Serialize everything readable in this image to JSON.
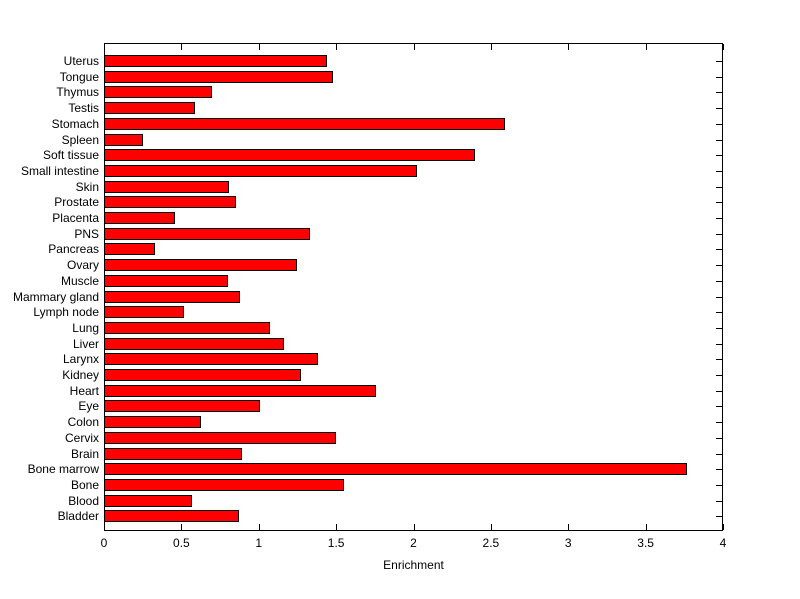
{
  "chart_data": {
    "type": "bar",
    "orientation": "horizontal",
    "xlabel": "Enrichment",
    "categories": [
      "Uterus",
      "Tongue",
      "Thymus",
      "Testis",
      "Stomach",
      "Spleen",
      "Soft tissue",
      "Small intestine",
      "Skin",
      "Prostate",
      "Placenta",
      "PNS",
      "Pancreas",
      "Ovary",
      "Muscle",
      "Mammary gland",
      "Lymph node",
      "Lung",
      "Liver",
      "Larynx",
      "Kidney",
      "Heart",
      "Eye",
      "Colon",
      "Cervix",
      "Brain",
      "Bone marrow",
      "Bone",
      "Blood",
      "Bladder"
    ],
    "values": [
      1.44,
      1.48,
      0.7,
      0.59,
      2.59,
      0.25,
      2.4,
      2.02,
      0.81,
      0.85,
      0.46,
      1.33,
      0.33,
      1.25,
      0.8,
      0.88,
      0.52,
      1.07,
      1.16,
      1.38,
      1.27,
      1.76,
      1.01,
      0.63,
      1.5,
      0.89,
      3.77,
      1.55,
      0.57,
      0.87
    ],
    "xlim": [
      0,
      4
    ],
    "xticks": [
      0,
      0.5,
      1,
      1.5,
      2,
      2.5,
      3,
      3.5,
      4
    ],
    "xtick_labels": [
      "0",
      "0.5",
      "1",
      "1.5",
      "2",
      "2.5",
      "3",
      "3.5",
      "4"
    ],
    "grid": false,
    "legend": "none",
    "bar_color": "#ff0000",
    "bar_border_color": "#000000",
    "axis_color": "#000000",
    "background_color": "#ffffff"
  }
}
